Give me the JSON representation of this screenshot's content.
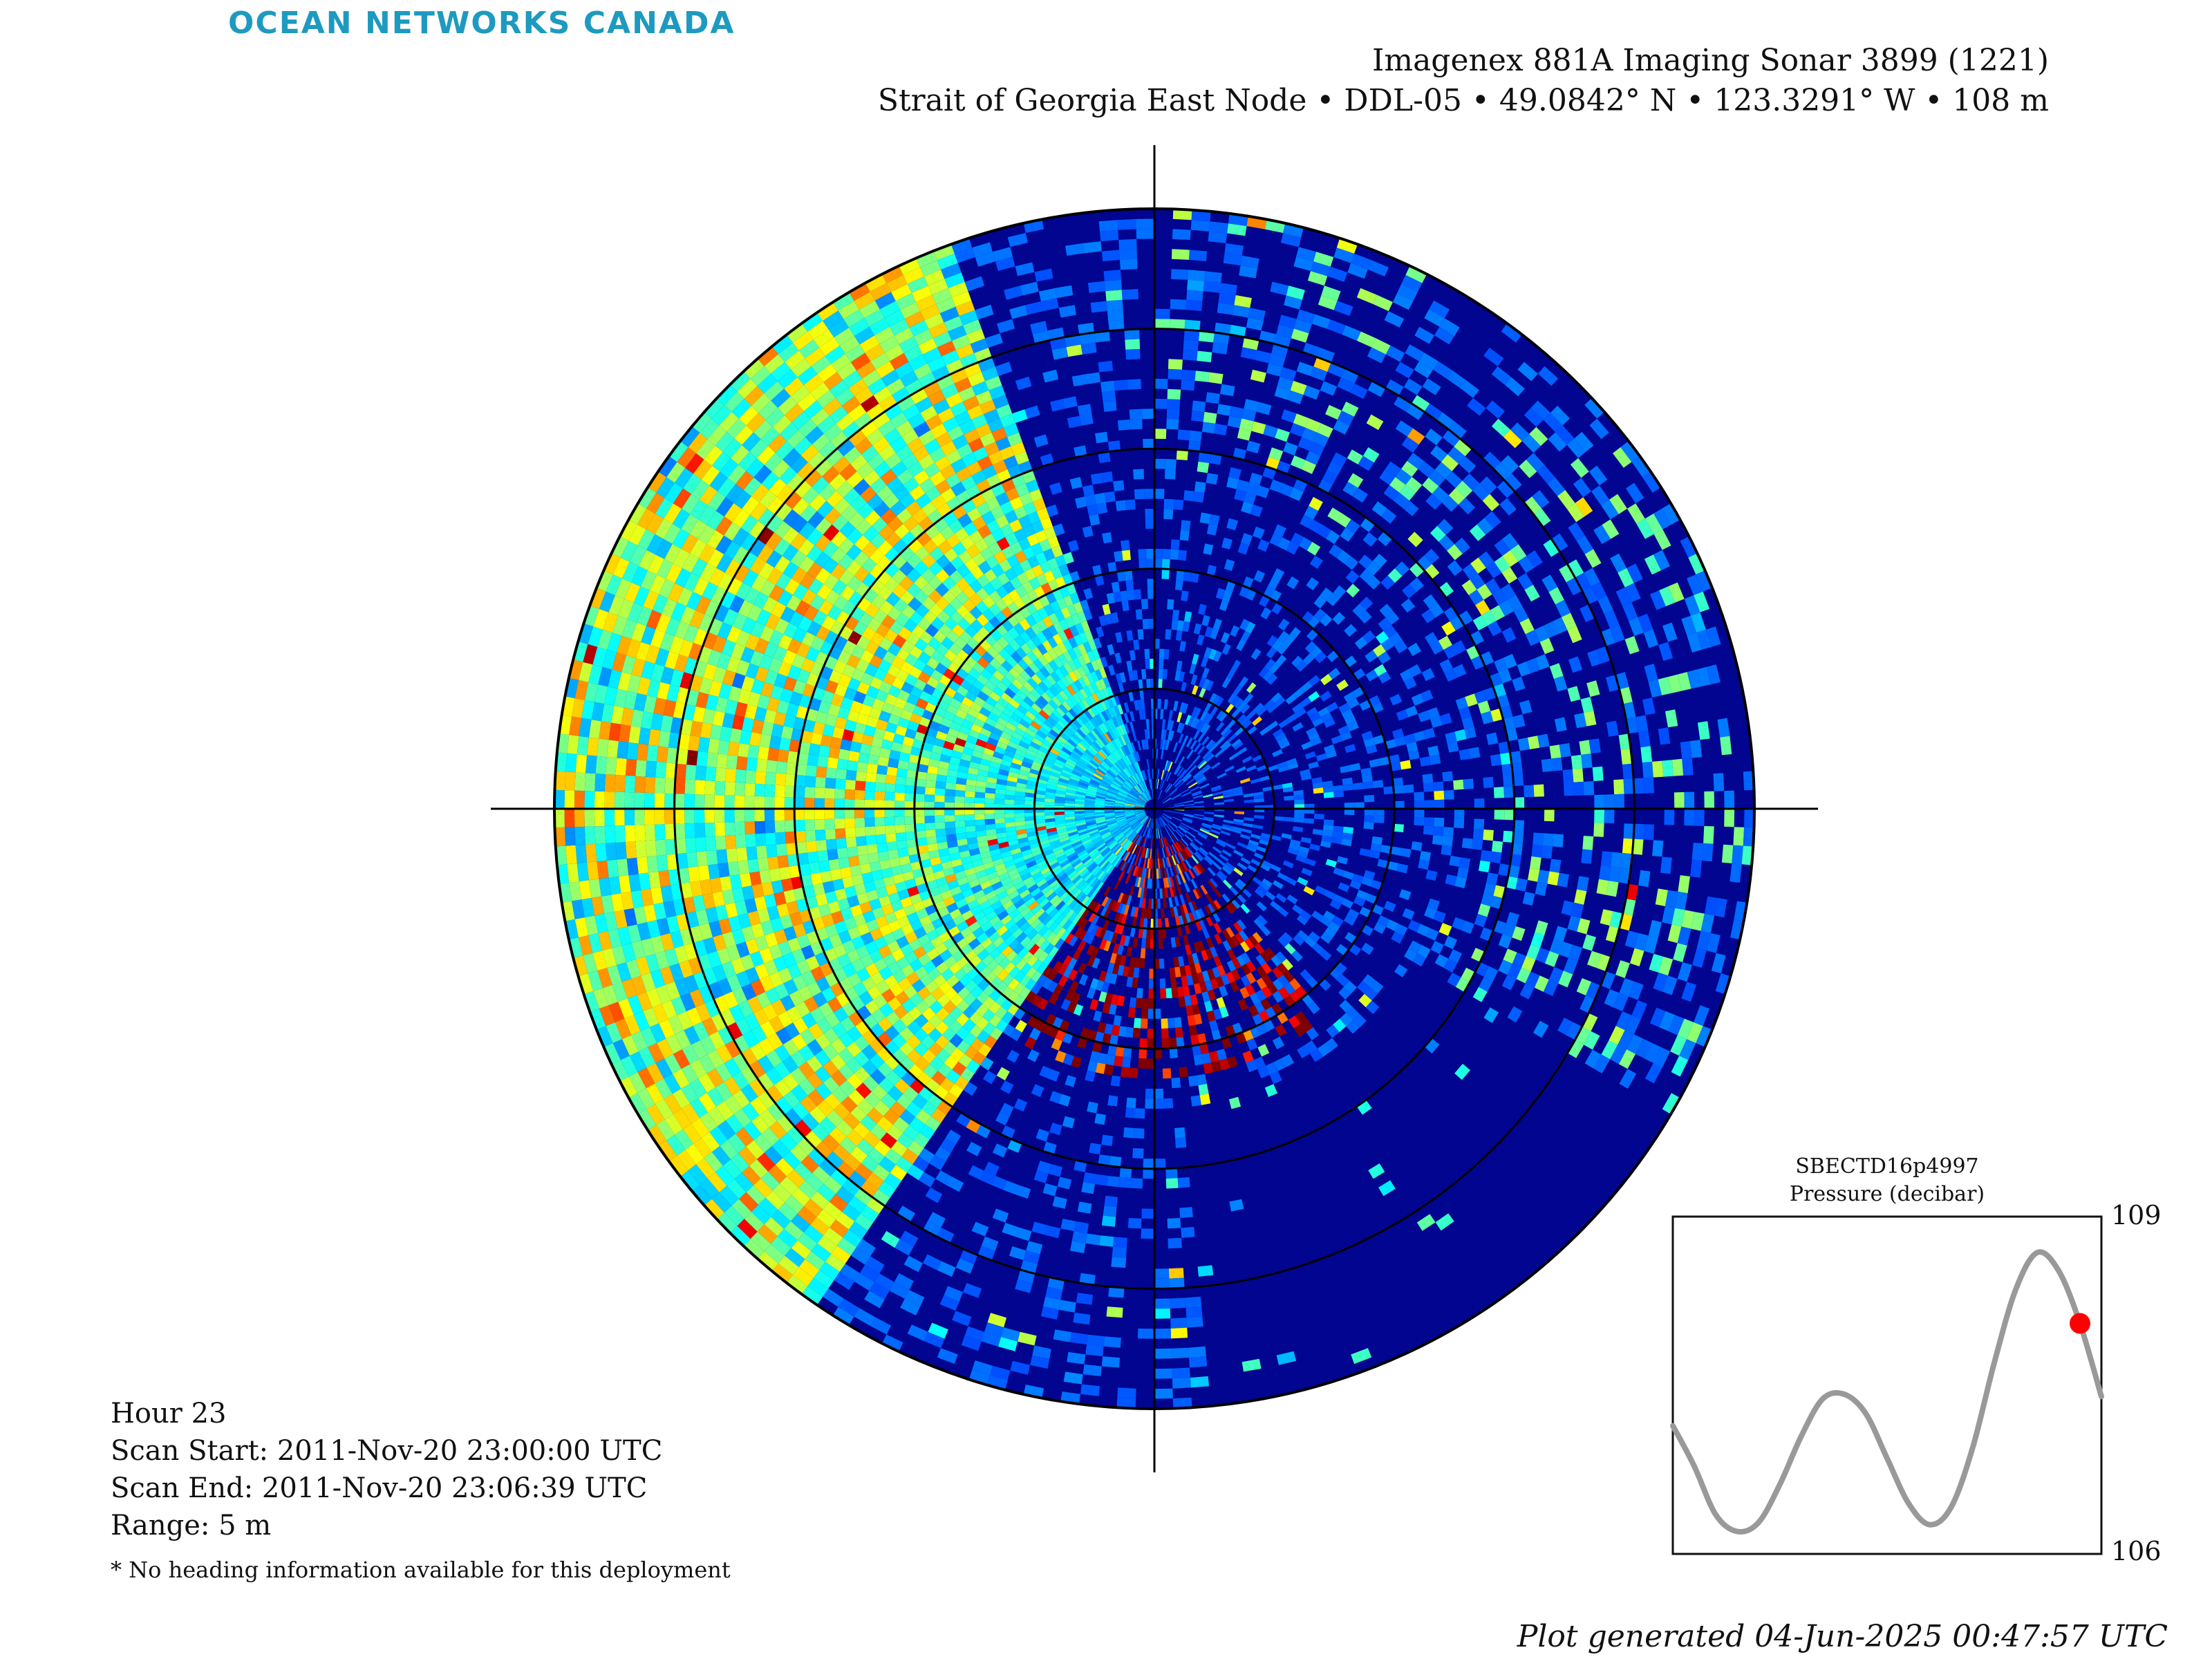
{
  "branding": {
    "org": "OCEAN NETWORKS CANADA",
    "color": "#1e9ac0"
  },
  "title": {
    "line1": "Imagenex 881A Imaging Sonar 3899 (1221)",
    "line2": "Strait of Georgia East Node • DDL-05 • 49.0842° N • 123.3291° W • 108 m"
  },
  "scan_info": {
    "hour": "Hour 23",
    "scan_start": "Scan Start: 2011-Nov-20 23:00:00 UTC",
    "scan_end": "Scan End: 2011-Nov-20 23:06:39 UTC",
    "range": "Range: 5 m",
    "note": "* No heading information available for this deployment"
  },
  "chart_data": [
    {
      "type": "heatmap",
      "projection": "polar",
      "range_m": 5,
      "range_rings_m": [
        1,
        2,
        3,
        4
      ],
      "colormap": [
        "#00007f",
        "#0000ff",
        "#00ffff",
        "#ffff00",
        "#ff0000",
        "#7f0000"
      ],
      "background_color": "#02058f"
    },
    {
      "type": "line",
      "title": "SBECTD16p4997",
      "subtitle": "Pressure (decibar)",
      "ylim": [
        106,
        109
      ],
      "y_ticks": [
        "109",
        "106"
      ],
      "line_color": "#999999",
      "marker_color": "#ff0000",
      "series": [
        {
          "values": [
            107.14,
            106.78,
            106.35,
            106.2,
            106.28,
            106.62,
            107.05,
            107.38,
            107.42,
            107.25,
            106.85,
            106.45,
            106.26,
            106.42,
            106.95,
            107.7,
            108.35,
            108.68,
            108.52,
            108.05,
            107.4
          ]
        }
      ],
      "current_value": 108.05
    }
  ],
  "footer": "Plot generated 04-Jun-2025 00:47:57 UTC"
}
